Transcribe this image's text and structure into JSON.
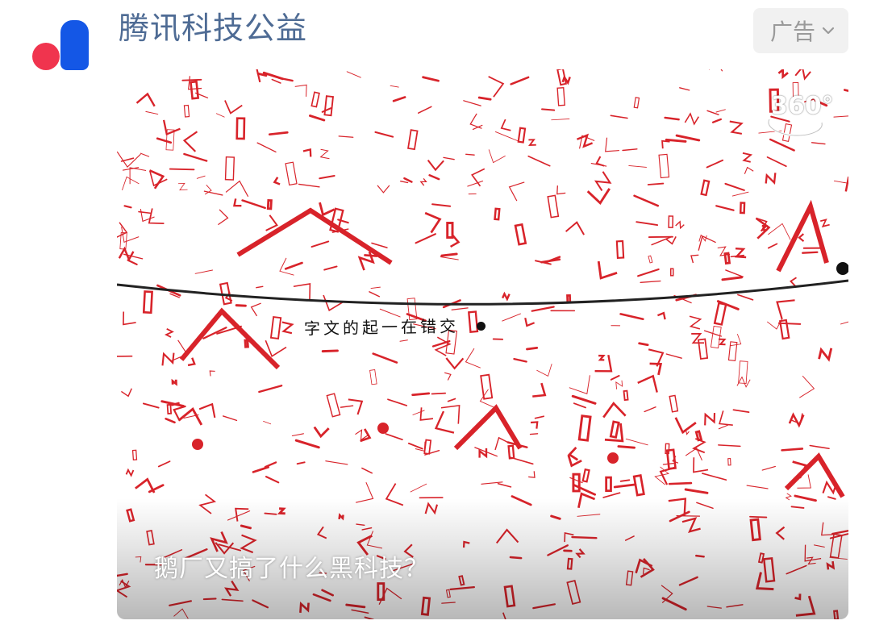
{
  "post": {
    "account_name": "腾讯科技公益",
    "ad_label": "广告"
  },
  "media": {
    "badge": "360°",
    "tagline": "字文的起一在错交",
    "caption": "鹅厂又搞了什么黑科技？"
  },
  "colors": {
    "name_blue": "#4e6b94",
    "art_red": "#d8232a",
    "avatar_red": "#f0344e",
    "avatar_blue": "#1457e6"
  },
  "icons": {
    "avatar": "tencent-charity-logo",
    "ad_menu": "chevron-down-icon",
    "vr": "360-view-icon"
  }
}
